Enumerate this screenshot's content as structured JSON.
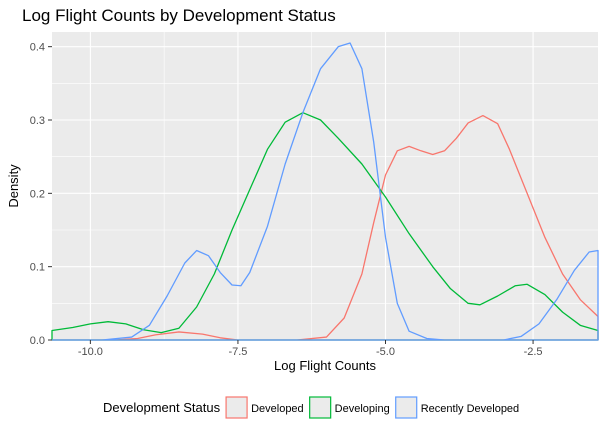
{
  "chart_data": {
    "type": "area",
    "title": "Log Flight Counts by Development Status",
    "xlabel": "Log Flight Counts",
    "ylabel": "Density",
    "xlim": [
      -10.65,
      -1.4
    ],
    "ylim": [
      0,
      0.42
    ],
    "x_ticks": [
      -10.0,
      -7.5,
      -5.0,
      -2.5
    ],
    "x_tick_labels": [
      "-10.0",
      "-7.5",
      "-5.0",
      "-2.5"
    ],
    "y_ticks": [
      0.0,
      0.1,
      0.2,
      0.3,
      0.4
    ],
    "y_tick_labels": [
      "0.0",
      "0.1",
      "0.2",
      "0.3",
      "0.4"
    ],
    "grid": true,
    "legend_position": "bottom",
    "legend_title": "Development Status",
    "series": [
      {
        "name": "Developed",
        "color": "#F8766D",
        "fill": "#EBEBEB",
        "points": [
          [
            -10.65,
            0.0
          ],
          [
            -9.6,
            0.0
          ],
          [
            -9.2,
            0.002
          ],
          [
            -8.9,
            0.007
          ],
          [
            -8.5,
            0.011
          ],
          [
            -8.1,
            0.008
          ],
          [
            -7.8,
            0.003
          ],
          [
            -7.5,
            0.0
          ],
          [
            -6.5,
            0.0
          ],
          [
            -6.0,
            0.004
          ],
          [
            -5.7,
            0.03
          ],
          [
            -5.4,
            0.09
          ],
          [
            -5.2,
            0.16
          ],
          [
            -5.0,
            0.225
          ],
          [
            -4.8,
            0.258
          ],
          [
            -4.6,
            0.264
          ],
          [
            -4.4,
            0.258
          ],
          [
            -4.2,
            0.253
          ],
          [
            -4.0,
            0.258
          ],
          [
            -3.8,
            0.275
          ],
          [
            -3.6,
            0.296
          ],
          [
            -3.35,
            0.306
          ],
          [
            -3.1,
            0.295
          ],
          [
            -2.9,
            0.26
          ],
          [
            -2.6,
            0.2
          ],
          [
            -2.3,
            0.14
          ],
          [
            -2.0,
            0.09
          ],
          [
            -1.7,
            0.055
          ],
          [
            -1.4,
            0.032
          ]
        ]
      },
      {
        "name": "Developing",
        "color": "#00BA38",
        "fill": "#EBEBEB",
        "points": [
          [
            -10.65,
            0.013
          ],
          [
            -10.3,
            0.017
          ],
          [
            -10.0,
            0.022
          ],
          [
            -9.7,
            0.025
          ],
          [
            -9.4,
            0.022
          ],
          [
            -9.1,
            0.014
          ],
          [
            -8.8,
            0.01
          ],
          [
            -8.5,
            0.016
          ],
          [
            -8.2,
            0.045
          ],
          [
            -7.9,
            0.09
          ],
          [
            -7.6,
            0.15
          ],
          [
            -7.3,
            0.205
          ],
          [
            -7.0,
            0.26
          ],
          [
            -6.7,
            0.297
          ],
          [
            -6.4,
            0.31
          ],
          [
            -6.1,
            0.3
          ],
          [
            -5.8,
            0.275
          ],
          [
            -5.4,
            0.24
          ],
          [
            -5.0,
            0.195
          ],
          [
            -4.6,
            0.145
          ],
          [
            -4.2,
            0.1
          ],
          [
            -3.9,
            0.07
          ],
          [
            -3.6,
            0.05
          ],
          [
            -3.4,
            0.048
          ],
          [
            -3.1,
            0.06
          ],
          [
            -2.8,
            0.074
          ],
          [
            -2.6,
            0.076
          ],
          [
            -2.3,
            0.062
          ],
          [
            -2.0,
            0.038
          ],
          [
            -1.7,
            0.02
          ],
          [
            -1.4,
            0.013
          ]
        ]
      },
      {
        "name": "Recently Developed",
        "color": "#619CFF",
        "fill": "#EBEBEB",
        "points": [
          [
            -10.65,
            0.0
          ],
          [
            -9.8,
            0.0
          ],
          [
            -9.3,
            0.004
          ],
          [
            -9.0,
            0.02
          ],
          [
            -8.7,
            0.06
          ],
          [
            -8.4,
            0.105
          ],
          [
            -8.2,
            0.122
          ],
          [
            -8.0,
            0.115
          ],
          [
            -7.8,
            0.092
          ],
          [
            -7.6,
            0.075
          ],
          [
            -7.45,
            0.074
          ],
          [
            -7.3,
            0.092
          ],
          [
            -7.0,
            0.155
          ],
          [
            -6.7,
            0.24
          ],
          [
            -6.4,
            0.31
          ],
          [
            -6.1,
            0.37
          ],
          [
            -5.8,
            0.4
          ],
          [
            -5.6,
            0.405
          ],
          [
            -5.4,
            0.37
          ],
          [
            -5.2,
            0.27
          ],
          [
            -5.0,
            0.14
          ],
          [
            -4.8,
            0.05
          ],
          [
            -4.6,
            0.012
          ],
          [
            -4.3,
            0.002
          ],
          [
            -4.0,
            0.0
          ],
          [
            -3.0,
            0.0
          ],
          [
            -2.7,
            0.005
          ],
          [
            -2.4,
            0.022
          ],
          [
            -2.1,
            0.055
          ],
          [
            -1.8,
            0.095
          ],
          [
            -1.55,
            0.12
          ],
          [
            -1.4,
            0.122
          ]
        ]
      }
    ]
  }
}
